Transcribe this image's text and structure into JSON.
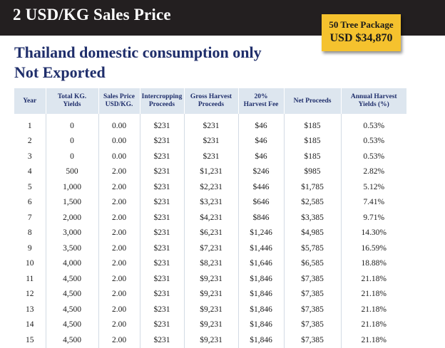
{
  "header": {
    "title": "2 USD/KG Sales Price",
    "package": {
      "title": "50 Tree Package",
      "price": "USD $34,870"
    },
    "headline_line1": "Thailand domestic consumption only",
    "headline_line2": "Not Exported"
  },
  "colors": {
    "top_bar": "#231f20",
    "package_bg": "#f5c22e",
    "headline": "#1f2e6b",
    "table_header_bg": "#dde6ef"
  },
  "table": {
    "columns": [
      [
        "Year"
      ],
      [
        "Total KG.",
        "Yields"
      ],
      [
        "Sales Price",
        "USD/KG."
      ],
      [
        "Intercropping",
        "Proceeds"
      ],
      [
        "Gross Harvest",
        "Proceeds"
      ],
      [
        "20%",
        "Harvest Fee"
      ],
      [
        "Net Proceeds"
      ],
      [
        "Annual Harvest",
        "Yields (%)"
      ]
    ],
    "rows": [
      [
        "1",
        "0",
        "0.00",
        "$231",
        "$231",
        "$46",
        "$185",
        "0.53%"
      ],
      [
        "2",
        "0",
        "0.00",
        "$231",
        "$231",
        "$46",
        "$185",
        "0.53%"
      ],
      [
        "3",
        "0",
        "0.00",
        "$231",
        "$231",
        "$46",
        "$185",
        "0.53%"
      ],
      [
        "4",
        "500",
        "2.00",
        "$231",
        "$1,231",
        "$246",
        "$985",
        "2.82%"
      ],
      [
        "5",
        "1,000",
        "2.00",
        "$231",
        "$2,231",
        "$446",
        "$1,785",
        "5.12%"
      ],
      [
        "6",
        "1,500",
        "2.00",
        "$231",
        "$3,231",
        "$646",
        "$2,585",
        "7.41%"
      ],
      [
        "7",
        "2,000",
        "2.00",
        "$231",
        "$4,231",
        "$846",
        "$3,385",
        "9.71%"
      ],
      [
        "8",
        "3,000",
        "2.00",
        "$231",
        "$6,231",
        "$1,246",
        "$4,985",
        "14.30%"
      ],
      [
        "9",
        "3,500",
        "2.00",
        "$231",
        "$7,231",
        "$1,446",
        "$5,785",
        "16.59%"
      ],
      [
        "10",
        "4,000",
        "2.00",
        "$231",
        "$8,231",
        "$1,646",
        "$6,585",
        "18.88%"
      ],
      [
        "11",
        "4,500",
        "2.00",
        "$231",
        "$9,231",
        "$1,846",
        "$7,385",
        "21.18%"
      ],
      [
        "12",
        "4,500",
        "2.00",
        "$231",
        "$9,231",
        "$1,846",
        "$7,385",
        "21.18%"
      ],
      [
        "13",
        "4,500",
        "2.00",
        "$231",
        "$9,231",
        "$1,846",
        "$7,385",
        "21.18%"
      ],
      [
        "14",
        "4,500",
        "2.00",
        "$231",
        "$9,231",
        "$1,846",
        "$7,385",
        "21.18%"
      ],
      [
        "15",
        "4,500",
        "2.00",
        "$231",
        "$9,231",
        "$1,846",
        "$7,385",
        "21.18%"
      ]
    ]
  }
}
